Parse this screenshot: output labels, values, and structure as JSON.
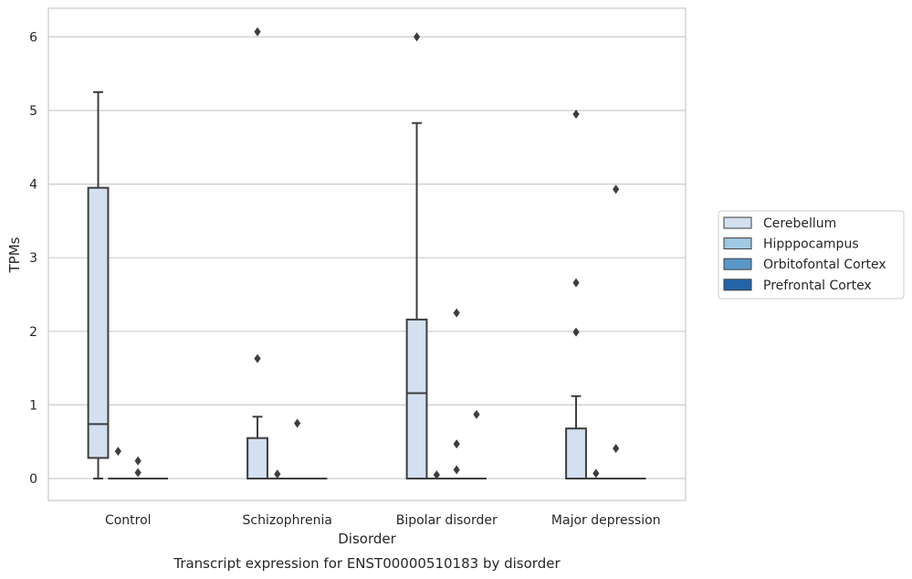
{
  "chart_data": {
    "type": "box",
    "caption": "Transcript expression for ENST00000510183 by disorder",
    "xlabel": "Disorder",
    "ylabel": "TPMs",
    "categories": [
      "Control",
      "Schizophrenia",
      "Bipolar disorder",
      "Major depression"
    ],
    "ylim": [
      -0.3,
      6.4
    ],
    "yticks": [
      0,
      1,
      2,
      3,
      4,
      5,
      6
    ],
    "grid": "horizontal",
    "legend_position": "right",
    "series": [
      {
        "name": "Cerebellum",
        "color": "#d2e0f0",
        "boxes": [
          {
            "category": "Control",
            "q1": 0.28,
            "median": 0.74,
            "q3": 3.95,
            "whisker_low": 0.0,
            "whisker_high": 5.25,
            "outliers": []
          },
          {
            "category": "Schizophrenia",
            "q1": 0.0,
            "median": 0.0,
            "q3": 0.55,
            "whisker_low": 0.0,
            "whisker_high": 0.84,
            "outliers": [
              1.63,
              6.07
            ]
          },
          {
            "category": "Bipolar disorder",
            "q1": 0.0,
            "median": 1.16,
            "q3": 2.16,
            "whisker_low": 0.0,
            "whisker_high": 4.83,
            "outliers": [
              6.0
            ]
          },
          {
            "category": "Major depression",
            "q1": 0.0,
            "median": 0.0,
            "q3": 0.68,
            "whisker_low": 0.0,
            "whisker_high": 1.12,
            "outliers": [
              1.99,
              2.66,
              4.95
            ]
          }
        ]
      },
      {
        "name": "Hipppocampus",
        "color": "#9ec9e0",
        "boxes": [
          {
            "category": "Control",
            "q1": 0.0,
            "median": 0.0,
            "q3": 0.0,
            "whisker_low": 0.0,
            "whisker_high": 0.0,
            "outliers": [
              0.37
            ]
          },
          {
            "category": "Schizophrenia",
            "q1": 0.0,
            "median": 0.0,
            "q3": 0.0,
            "whisker_low": 0.0,
            "whisker_high": 0.0,
            "outliers": [
              0.06
            ]
          },
          {
            "category": "Bipolar disorder",
            "q1": 0.0,
            "median": 0.0,
            "q3": 0.0,
            "whisker_low": 0.0,
            "whisker_high": 0.0,
            "outliers": [
              0.05
            ]
          },
          {
            "category": "Major depression",
            "q1": 0.0,
            "median": 0.0,
            "q3": 0.0,
            "whisker_low": 0.0,
            "whisker_high": 0.0,
            "outliers": [
              0.07
            ]
          }
        ]
      },
      {
        "name": "Orbitofontal Cortex",
        "color": "#5a97c8",
        "boxes": [
          {
            "category": "Control",
            "q1": 0.0,
            "median": 0.0,
            "q3": 0.0,
            "whisker_low": 0.0,
            "whisker_high": 0.0,
            "outliers": [
              0.08,
              0.24
            ]
          },
          {
            "category": "Schizophrenia",
            "q1": 0.0,
            "median": 0.0,
            "q3": 0.0,
            "whisker_low": 0.0,
            "whisker_high": 0.0,
            "outliers": [
              0.75
            ]
          },
          {
            "category": "Bipolar disorder",
            "q1": 0.0,
            "median": 0.0,
            "q3": 0.0,
            "whisker_low": 0.0,
            "whisker_high": 0.0,
            "outliers": [
              0.12,
              0.47,
              2.25
            ]
          },
          {
            "category": "Major depression",
            "q1": 0.0,
            "median": 0.0,
            "q3": 0.0,
            "whisker_low": 0.0,
            "whisker_high": 0.0,
            "outliers": [
              0.41,
              3.93
            ]
          }
        ]
      },
      {
        "name": "Prefrontal Cortex",
        "color": "#2464a8",
        "boxes": [
          {
            "category": "Control",
            "q1": 0.0,
            "median": 0.0,
            "q3": 0.0,
            "whisker_low": 0.0,
            "whisker_high": 0.0,
            "outliers": []
          },
          {
            "category": "Schizophrenia",
            "q1": 0.0,
            "median": 0.0,
            "q3": 0.0,
            "whisker_low": 0.0,
            "whisker_high": 0.0,
            "outliers": []
          },
          {
            "category": "Bipolar disorder",
            "q1": 0.0,
            "median": 0.0,
            "q3": 0.0,
            "whisker_low": 0.0,
            "whisker_high": 0.0,
            "outliers": [
              0.87
            ]
          },
          {
            "category": "Major depression",
            "q1": 0.0,
            "median": 0.0,
            "q3": 0.0,
            "whisker_low": 0.0,
            "whisker_high": 0.0,
            "outliers": []
          }
        ]
      }
    ]
  }
}
